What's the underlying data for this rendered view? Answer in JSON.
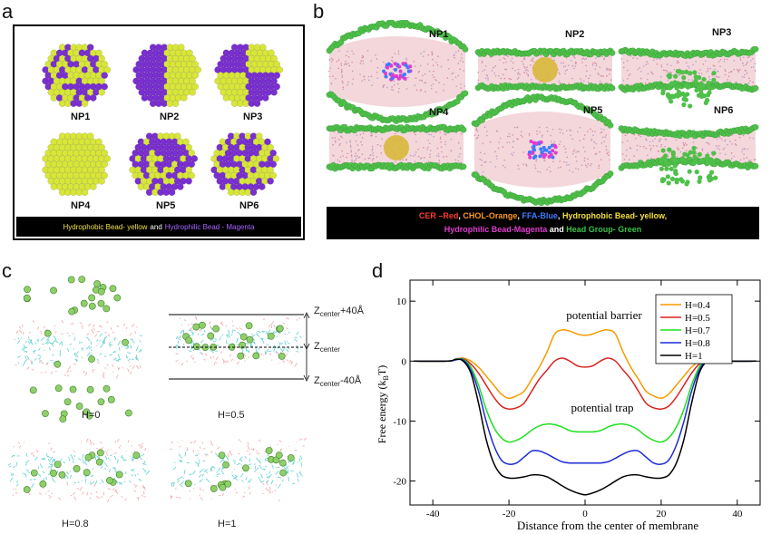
{
  "panels": {
    "a": {
      "letter": "a",
      "nanoparticles": [
        "NP1",
        "NP2",
        "NP3",
        "NP4",
        "NP5",
        "NP6"
      ],
      "legend": {
        "hydrophobic": "Hydrophobic Bead- yellow",
        "and": "and",
        "hydrophilic": "Hydrophilic Bead - Magenta"
      },
      "colors": {
        "hydrophobic": "#d8e63a",
        "hydrophilic": "#7a2fd0"
      }
    },
    "b": {
      "letter": "b",
      "nanoparticles": [
        "NP1",
        "NP2",
        "NP3",
        "NP4",
        "NP5",
        "NP6"
      ],
      "legend": {
        "line1": [
          {
            "text": "CER –Red",
            "color": "#ff3a2e"
          },
          {
            "text": ", ",
            "color": "#ffffff"
          },
          {
            "text": "CHOL-Orange",
            "color": "#ff9a1f"
          },
          {
            "text": ", ",
            "color": "#ffffff"
          },
          {
            "text": "FFA-Blue",
            "color": "#3d7bff"
          },
          {
            "text": ", ",
            "color": "#ffffff"
          },
          {
            "text": "Hydrophobic Bead- yellow,",
            "color": "#f2e13a"
          }
        ],
        "line2": [
          {
            "text": "Hydrophilic Bead-Magenta",
            "color": "#e03bd0"
          },
          {
            "text": " and ",
            "color": "#ffffff"
          },
          {
            "text": "Head Group- Green",
            "color": "#3cc24a"
          }
        ]
      }
    },
    "c": {
      "letter": "c",
      "labels": [
        "H=0",
        "H=0.5",
        "H=0.8",
        "H=1"
      ],
      "z_top": "Z",
      "z_top_sub": "center",
      "z_top_suffix": "+40Å",
      "z_mid": "Z",
      "z_mid_sub": "center",
      "z_bot": "Z",
      "z_bot_sub": "center",
      "z_bot_suffix": "-40Å"
    },
    "d": {
      "letter": "d",
      "annotation_barrier": "potential barrier",
      "annotation_trap": "potential trap"
    }
  },
  "chart_data": {
    "type": "line",
    "xlabel": "Distance from the center of membrane",
    "ylabel": "Free energy (k",
    "ylabel_sub": "B",
    "ylabel_suffix": "T)",
    "xlim": [
      -46,
      46
    ],
    "ylim": [
      -24,
      13.5
    ],
    "xticks": [
      -40,
      -20,
      0,
      20,
      40
    ],
    "yticks": [
      -20,
      -10,
      0,
      10
    ],
    "grid": false,
    "legend_position": "top-right",
    "series": [
      {
        "name": "H=0.4",
        "color": "#f59b00",
        "x": [
          -45,
          -36,
          -34,
          -32,
          -30,
          -28,
          -26,
          -24,
          -22,
          -20,
          -18,
          -16,
          -14,
          -12,
          -10,
          -8,
          -6,
          -4,
          -2,
          0,
          2,
          4,
          6,
          8,
          10,
          12,
          14,
          16,
          18,
          20,
          22,
          24,
          26,
          28,
          30,
          32,
          34,
          36,
          45
        ],
        "y": [
          0,
          0,
          0.3,
          0.5,
          0,
          -1,
          -2.5,
          -4,
          -5.5,
          -6.2,
          -5.8,
          -5,
          -3,
          -1,
          1.5,
          4.5,
          5.2,
          5,
          4.5,
          4.3,
          4.5,
          5,
          5.2,
          4.5,
          1.5,
          -1,
          -3,
          -5,
          -5.8,
          -6.2,
          -5.5,
          -4,
          -2.5,
          -1,
          0,
          0.5,
          0.3,
          0,
          0
        ]
      },
      {
        "name": "H=0.5",
        "color": "#d8241f",
        "x": [
          -45,
          -36,
          -34,
          -32,
          -30,
          -28,
          -26,
          -24,
          -22,
          -20,
          -18,
          -16,
          -14,
          -12,
          -10,
          -8,
          -6,
          -4,
          -2,
          0,
          2,
          4,
          6,
          8,
          10,
          12,
          14,
          16,
          18,
          20,
          22,
          24,
          26,
          28,
          30,
          32,
          34,
          36,
          45
        ],
        "y": [
          0,
          0,
          0.3,
          0.4,
          -0.5,
          -2,
          -4,
          -6,
          -7.5,
          -8,
          -7.8,
          -7,
          -5,
          -3,
          -1.5,
          0,
          0.5,
          0,
          -0.8,
          -1,
          -0.8,
          0,
          0.5,
          0,
          -1.5,
          -3,
          -5,
          -7,
          -7.8,
          -8,
          -7.5,
          -6,
          -4,
          -2,
          -0.5,
          0.4,
          0.3,
          0,
          0
        ]
      },
      {
        "name": "H=0.7",
        "color": "#1fe01f",
        "x": [
          -45,
          -36,
          -34,
          -32,
          -30,
          -28,
          -26,
          -24,
          -22,
          -20,
          -18,
          -16,
          -14,
          -12,
          -10,
          -8,
          -6,
          -4,
          -2,
          0,
          2,
          4,
          6,
          8,
          10,
          12,
          14,
          16,
          18,
          20,
          22,
          24,
          26,
          28,
          30,
          32,
          34,
          36,
          45
        ],
        "y": [
          0,
          0,
          0.3,
          0.3,
          -1,
          -4,
          -8,
          -11,
          -12.8,
          -13.5,
          -13.2,
          -12.5,
          -11.5,
          -10.8,
          -10.5,
          -10.6,
          -11,
          -11.6,
          -11.8,
          -11.8,
          -11.8,
          -11.6,
          -11,
          -10.6,
          -10.5,
          -10.8,
          -11.5,
          -12.5,
          -13.2,
          -13.5,
          -12.8,
          -11,
          -8,
          -4,
          -1,
          0.3,
          0.3,
          0,
          0
        ]
      },
      {
        "name": "H=0.8",
        "color": "#1c2bd6",
        "x": [
          -45,
          -36,
          -34,
          -32,
          -30,
          -28,
          -26,
          -24,
          -22,
          -20,
          -18,
          -16,
          -14,
          -12,
          -10,
          -8,
          -6,
          -4,
          -2,
          0,
          2,
          4,
          6,
          8,
          10,
          12,
          14,
          16,
          18,
          20,
          22,
          24,
          26,
          28,
          30,
          32,
          34,
          36,
          45
        ],
        "y": [
          0,
          0,
          0.2,
          0.2,
          -1.5,
          -5,
          -10,
          -14,
          -16.5,
          -17.2,
          -17,
          -16,
          -15,
          -15,
          -15.5,
          -16.2,
          -16.8,
          -17,
          -17,
          -17,
          -17,
          -17,
          -16.8,
          -16.2,
          -15.5,
          -15,
          -15,
          -16,
          -17,
          -17.2,
          -16.5,
          -14,
          -10,
          -5,
          -1.5,
          0.2,
          0.2,
          0,
          0
        ]
      },
      {
        "name": "H=1",
        "color": "#000000",
        "x": [
          -45,
          -36,
          -34,
          -32,
          -30,
          -28,
          -26,
          -24,
          -22,
          -20,
          -18,
          -16,
          -14,
          -12,
          -10,
          -8,
          -6,
          -4,
          -2,
          0,
          2,
          4,
          6,
          8,
          10,
          12,
          14,
          16,
          18,
          20,
          22,
          24,
          26,
          28,
          30,
          32,
          34,
          36,
          45
        ],
        "y": [
          0,
          0,
          0.3,
          0,
          -2,
          -7,
          -13,
          -17,
          -19,
          -19.5,
          -19.5,
          -19.3,
          -19,
          -19,
          -19.3,
          -20,
          -20.8,
          -21.5,
          -22,
          -22.3,
          -22,
          -21.5,
          -20.8,
          -20,
          -19.3,
          -19,
          -19,
          -19.3,
          -19.5,
          -19.5,
          -19,
          -17,
          -13,
          -7,
          -2,
          0,
          0.3,
          0,
          0
        ]
      }
    ]
  }
}
